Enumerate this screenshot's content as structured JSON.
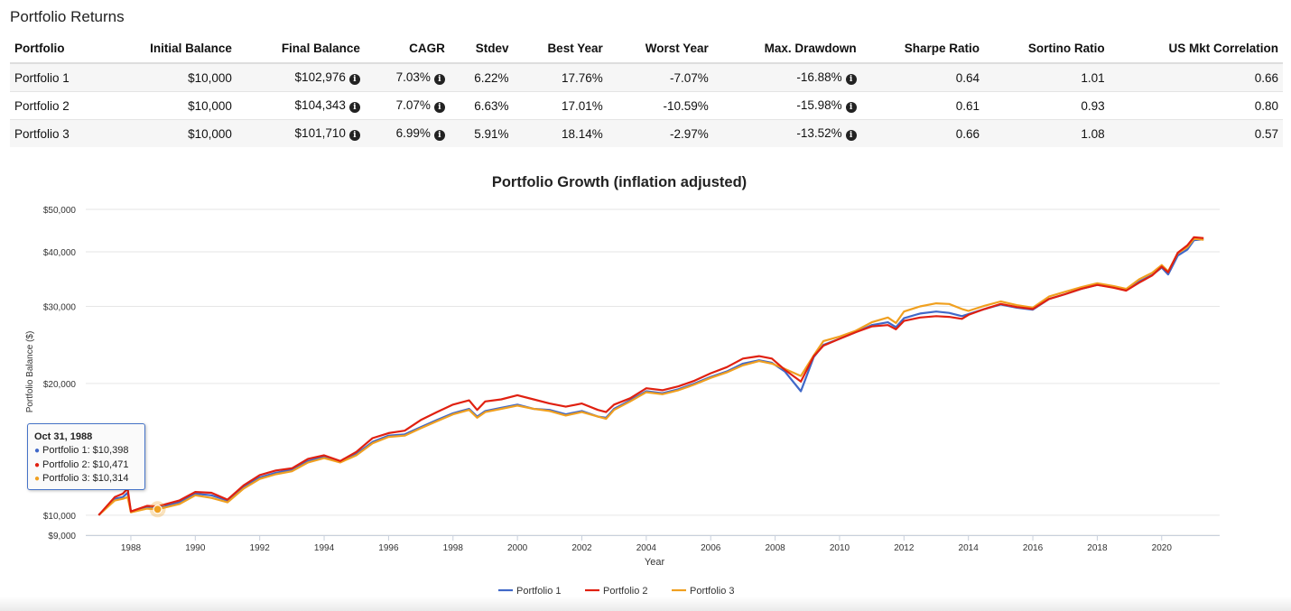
{
  "page": {
    "title": "Portfolio Returns"
  },
  "table": {
    "columns": [
      "Portfolio",
      "Initial Balance",
      "Final Balance",
      "CAGR",
      "Stdev",
      "Best Year",
      "Worst Year",
      "Max. Drawdown",
      "Sharpe Ratio",
      "Sortino Ratio",
      "US Mkt Correlation"
    ],
    "rows": [
      [
        "Portfolio 1",
        "$10,000",
        "$102,976",
        "7.03%",
        "6.22%",
        "17.76%",
        "-7.07%",
        "-16.88%",
        "0.64",
        "1.01",
        "0.66"
      ],
      [
        "Portfolio 2",
        "$10,000",
        "$104,343",
        "7.07%",
        "6.63%",
        "17.01%",
        "-10.59%",
        "-15.98%",
        "0.61",
        "0.93",
        "0.80"
      ],
      [
        "Portfolio 3",
        "$10,000",
        "$101,710",
        "6.99%",
        "5.91%",
        "18.14%",
        "-2.97%",
        "-13.52%",
        "0.66",
        "1.08",
        "0.57"
      ]
    ],
    "info_icon": "info-circle-icon"
  },
  "tooltip": {
    "date": "Oct 31, 1988",
    "rows": [
      "Portfolio 1: $10,398",
      "Portfolio 2: $10,471",
      "Portfolio 3: $10,314"
    ]
  },
  "chart_data": {
    "type": "line",
    "title": "Portfolio Growth (inflation adjusted)",
    "xlabel": "Year",
    "ylabel": "Portfolio Balance ($)",
    "y_scale": "log",
    "xlim": [
      1986.6,
      2021.8
    ],
    "ylim": [
      9000,
      50000
    ],
    "y_ticks": [
      9000,
      10000,
      20000,
      30000,
      40000,
      50000
    ],
    "y_tick_labels": [
      "$9,000",
      "$10,000",
      "$20,000",
      "$30,000",
      "$40,000",
      "$50,000"
    ],
    "x_ticks": [
      1988,
      1990,
      1992,
      1994,
      1996,
      1998,
      2000,
      2002,
      2004,
      2006,
      2008,
      2010,
      2012,
      2014,
      2016,
      2018,
      2020
    ],
    "grid": "horizontal",
    "legend_position": "bottom-center",
    "colors": {
      "Portfolio 1": "#4068c8",
      "Portfolio 2": "#e02010",
      "Portfolio 3": "#f0a020"
    },
    "highlight": {
      "x": 1988.83,
      "value": 10314,
      "series": "Portfolio 3"
    },
    "x": [
      1987.0,
      1987.5,
      1987.75,
      1987.9,
      1988.0,
      1988.5,
      1988.83,
      1989.5,
      1990.0,
      1990.5,
      1991.0,
      1991.5,
      1992.0,
      1992.5,
      1993.0,
      1993.5,
      1994.0,
      1994.5,
      1995.0,
      1995.5,
      1996.0,
      1996.5,
      1997.0,
      1997.5,
      1998.0,
      1998.5,
      1998.75,
      1999.0,
      1999.5,
      2000.0,
      2000.5,
      2001.0,
      2001.5,
      2002.0,
      2002.5,
      2002.75,
      2003.0,
      2003.5,
      2004.0,
      2004.5,
      2005.0,
      2005.5,
      2006.0,
      2006.5,
      2007.0,
      2007.5,
      2007.9,
      2008.3,
      2008.8,
      2009.2,
      2009.5,
      2010.0,
      2010.5,
      2011.0,
      2011.5,
      2011.75,
      2012.0,
      2012.5,
      2013.0,
      2013.4,
      2013.8,
      2014.0,
      2014.5,
      2015.0,
      2015.5,
      2016.0,
      2016.5,
      2017.0,
      2017.5,
      2018.0,
      2018.5,
      2018.9,
      2019.3,
      2019.7,
      2020.0,
      2020.2,
      2020.5,
      2020.8,
      2021.0,
      2021.3
    ],
    "series": [
      {
        "name": "Portfolio 1",
        "values": [
          10000,
          10900,
          11000,
          11250,
          10200,
          10450,
          10398,
          10700,
          11200,
          11100,
          10800,
          11600,
          12200,
          12500,
          12700,
          13300,
          13600,
          13250,
          13800,
          14700,
          15200,
          15300,
          15900,
          16500,
          17100,
          17500,
          16800,
          17300,
          17600,
          17900,
          17500,
          17400,
          17000,
          17300,
          16800,
          16700,
          17500,
          18300,
          19200,
          19000,
          19400,
          20000,
          20700,
          21300,
          22200,
          22600,
          22300,
          21300,
          19200,
          23000,
          24500,
          25300,
          26200,
          27200,
          27600,
          26900,
          28200,
          28900,
          29200,
          29000,
          28500,
          28800,
          29600,
          30300,
          29800,
          29500,
          31200,
          32000,
          32900,
          33600,
          33200,
          32800,
          34200,
          35400,
          36800,
          35500,
          39200,
          40500,
          42500,
          42700
        ]
      },
      {
        "name": "Portfolio 2",
        "values": [
          10000,
          11000,
          11200,
          11500,
          10200,
          10500,
          10471,
          10800,
          11300,
          11250,
          10850,
          11700,
          12350,
          12650,
          12800,
          13450,
          13700,
          13300,
          13950,
          15000,
          15400,
          15600,
          16500,
          17200,
          17900,
          18300,
          17400,
          18200,
          18400,
          18800,
          18400,
          18000,
          17700,
          18000,
          17400,
          17200,
          17900,
          18500,
          19500,
          19300,
          19700,
          20300,
          21100,
          21800,
          22800,
          23100,
          22800,
          21500,
          20200,
          23100,
          24400,
          25300,
          26200,
          27000,
          27200,
          26600,
          27800,
          28300,
          28500,
          28400,
          28100,
          28700,
          29600,
          30400,
          29900,
          29600,
          31200,
          32000,
          32900,
          33600,
          33100,
          32600,
          34000,
          35300,
          37000,
          35900,
          39800,
          41400,
          43200,
          43000
        ]
      },
      {
        "name": "Portfolio 3",
        "values": [
          10000,
          10800,
          10900,
          11000,
          10150,
          10350,
          10314,
          10600,
          11100,
          10950,
          10700,
          11500,
          12100,
          12400,
          12600,
          13200,
          13500,
          13200,
          13700,
          14600,
          15100,
          15200,
          15800,
          16400,
          17000,
          17400,
          16700,
          17200,
          17500,
          17800,
          17500,
          17300,
          16900,
          17200,
          16800,
          16600,
          17400,
          18200,
          19100,
          18900,
          19300,
          19900,
          20600,
          21200,
          22000,
          22500,
          22200,
          21600,
          20800,
          23200,
          25000,
          25600,
          26400,
          27600,
          28300,
          27500,
          29200,
          30000,
          30500,
          30400,
          29600,
          29300,
          30100,
          30800,
          30200,
          29800,
          31600,
          32400,
          33200,
          33900,
          33400,
          32900,
          34600,
          35800,
          37300,
          36100,
          39700,
          41000,
          42800,
          42600
        ]
      }
    ]
  }
}
